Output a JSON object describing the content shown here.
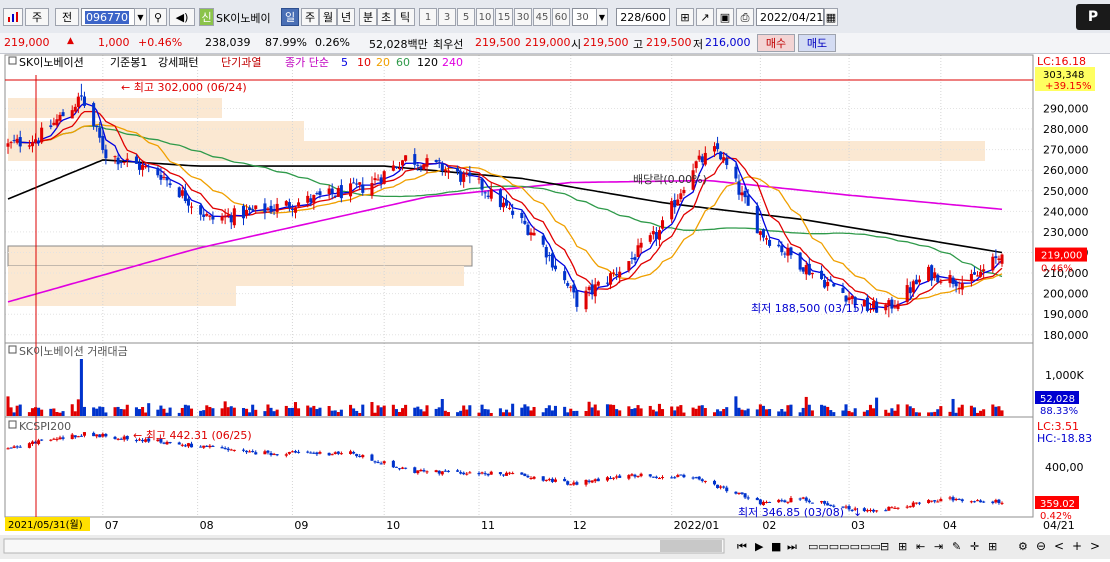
{
  "toolbar": {
    "period": "주",
    "prev": "전",
    "code": "096770",
    "signal": "신",
    "name": "SK이노베이",
    "period_buttons": [
      "일",
      "주",
      "월",
      "년",
      "분",
      "초",
      "틱"
    ],
    "numbers": [
      "1",
      "3",
      "5",
      "10",
      "15",
      "30",
      "45",
      "60"
    ],
    "interval": "30",
    "count": "228/600",
    "date": "2022/04/21",
    "p_label": "P"
  },
  "quote": {
    "price": "219,000",
    "arrow": "▲",
    "change": "1,000",
    "change_pct": "+0.46%",
    "volume": "238,039",
    "vol_ratio": "87.99%",
    "turnover": "0.26%",
    "amount": "52,028백만",
    "best_ask_label": "최우선",
    "best_ask": "219,500",
    "best_bid": "219,000",
    "open_label": "시",
    "open": "219,500",
    "high_label": "고",
    "high": "219,500",
    "low_label": "저",
    "low": "216,000",
    "buy": "매수",
    "sell": "매도"
  },
  "price_panel": {
    "legend": {
      "name": "SK이노베이션",
      "base": "기준봉1",
      "pattern": "강세패턴",
      "short": "단기과열",
      "ma_label": "종가 단순",
      "ma": [
        {
          "period": "5",
          "color": "#0000e0"
        },
        {
          "period": "10",
          "color": "#e00000"
        },
        {
          "period": "20",
          "color": "#f0a000"
        },
        {
          "period": "60",
          "color": "#2f9a4a"
        },
        {
          "period": "120",
          "color": "#000000"
        },
        {
          "period": "240",
          "color": "#e000e0"
        }
      ]
    },
    "lc": "LC:16.18",
    "right_top_value": "303,348",
    "right_top_pct": "+39.15%",
    "cur_value": "219,000",
    "cur_pct": "0.46%",
    "high_note": "최고 302,000 (06/24)",
    "low_note": "최저 188,500 (03/15)",
    "div_note": "배당락(0.00%)",
    "y_labels": [
      "290,000",
      "280,000",
      "270,000",
      "260,000",
      "250,000",
      "240,000",
      "230,000",
      "220,000",
      "210,000",
      "200,000",
      "190,000",
      "180,000"
    ],
    "y_values": [
      290000,
      280000,
      270000,
      260000,
      250000,
      240000,
      230000,
      220000,
      210000,
      200000,
      190000,
      180000
    ]
  },
  "volume_panel": {
    "title": "SK이노베이션 거래대금",
    "y_label": "1,000K",
    "cur_value": "52,028",
    "cur_pct": "88.33%"
  },
  "index_panel": {
    "title": "KCSPI200",
    "lc": "LC:3.51",
    "hc": "HC:-18.83",
    "y_label": "400,00",
    "cur_value": "359.02",
    "cur_pct": "0.42%",
    "high_note": "최고 442.31 (06/25)",
    "low_note": "최저 346.85 (03/08)"
  },
  "x_axis": {
    "start": "2021/05/31(월)",
    "labels": [
      "07",
      "08",
      "09",
      "10",
      "11",
      "12",
      "2022/01",
      "02",
      "03",
      "04"
    ],
    "end": "04/21"
  },
  "chart_data": {
    "type": "candlestick",
    "title": "",
    "ylim": [
      176000,
      316000
    ],
    "x_start": "2021-05-31",
    "x_end": "2022-04-21",
    "month_ticks": [
      "07",
      "08",
      "09",
      "10",
      "11",
      "12",
      "2022/01",
      "02",
      "03",
      "04"
    ],
    "anchors": [
      {
        "date": "2021-05-31",
        "close": 272000
      },
      {
        "date": "2021-06-10",
        "close": 276000
      },
      {
        "date": "2021-06-24",
        "close": 295000
      },
      {
        "date": "2021-07-02",
        "close": 268000
      },
      {
        "date": "2021-07-20",
        "close": 258000
      },
      {
        "date": "2021-08-05",
        "close": 236000
      },
      {
        "date": "2021-08-20",
        "close": 240000
      },
      {
        "date": "2021-09-05",
        "close": 245000
      },
      {
        "date": "2021-09-25",
        "close": 252000
      },
      {
        "date": "2021-10-08",
        "close": 266000
      },
      {
        "date": "2021-10-20",
        "close": 261000
      },
      {
        "date": "2021-11-02",
        "close": 252000
      },
      {
        "date": "2021-11-20",
        "close": 228000
      },
      {
        "date": "2021-12-03",
        "close": 196000
      },
      {
        "date": "2021-12-18",
        "close": 213000
      },
      {
        "date": "2021-12-30",
        "close": 230000
      },
      {
        "date": "2022-01-10",
        "close": 262000
      },
      {
        "date": "2022-01-18",
        "close": 270000
      },
      {
        "date": "2022-02-01",
        "close": 230000
      },
      {
        "date": "2022-02-20",
        "close": 208000
      },
      {
        "date": "2022-03-08",
        "close": 193000
      },
      {
        "date": "2022-03-15",
        "close": 193500
      },
      {
        "date": "2022-03-28",
        "close": 210000
      },
      {
        "date": "2022-04-10",
        "close": 205000
      },
      {
        "date": "2022-04-21",
        "close": 219000
      }
    ],
    "high": {
      "date": "2021-06-24",
      "value": 302000
    },
    "low": {
      "date": "2022-03-15",
      "value": 188500
    },
    "ma120_anchors": [
      {
        "date": "2021-05-31",
        "value": 246000
      },
      {
        "date": "2021-07-01",
        "value": 265000
      },
      {
        "date": "2021-08-01",
        "value": 262000
      },
      {
        "date": "2021-10-01",
        "value": 262000
      },
      {
        "date": "2021-11-15",
        "value": 256000
      },
      {
        "date": "2022-01-01",
        "value": 244000
      },
      {
        "date": "2022-02-15",
        "value": 236000
      },
      {
        "date": "2022-04-21",
        "value": 220000
      }
    ],
    "ma240_anchors": [
      {
        "date": "2021-05-31",
        "value": 196000
      },
      {
        "date": "2021-08-01",
        "value": 222000
      },
      {
        "date": "2021-10-15",
        "value": 247000
      },
      {
        "date": "2021-12-01",
        "value": 254000
      },
      {
        "date": "2022-01-15",
        "value": 255000
      },
      {
        "date": "2022-03-01",
        "value": 248000
      },
      {
        "date": "2022-04-21",
        "value": 241000
      }
    ],
    "volume_spike": {
      "date": "2021-06-24",
      "relative": 3.8
    },
    "index_anchors": [
      {
        "date": "2021-05-31",
        "value": 425
      },
      {
        "date": "2021-06-25",
        "value": 442
      },
      {
        "date": "2021-07-20",
        "value": 432
      },
      {
        "date": "2021-08-20",
        "value": 418
      },
      {
        "date": "2021-09-20",
        "value": 418
      },
      {
        "date": "2021-10-10",
        "value": 396
      },
      {
        "date": "2021-11-15",
        "value": 392
      },
      {
        "date": "2021-12-01",
        "value": 380
      },
      {
        "date": "2021-12-20",
        "value": 392
      },
      {
        "date": "2022-01-10",
        "value": 388
      },
      {
        "date": "2022-02-01",
        "value": 358
      },
      {
        "date": "2022-02-15",
        "value": 362
      },
      {
        "date": "2022-03-08",
        "value": 347
      },
      {
        "date": "2022-03-25",
        "value": 357
      },
      {
        "date": "2022-04-05",
        "value": 362
      },
      {
        "date": "2022-04-21",
        "value": 359
      }
    ],
    "index_ylim": [
      340,
      460
    ]
  }
}
